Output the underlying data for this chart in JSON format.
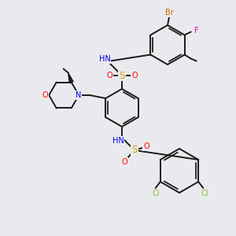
{
  "background_color": "#eaeaee",
  "bond_color": "#1a1a1a",
  "atom_colors": {
    "Br": "#cc6600",
    "F": "#cc00cc",
    "Cl": "#7bc42a",
    "N": "#0000ee",
    "O": "#ff0000",
    "S": "#ccaa00",
    "C": "#1a1a1a",
    "H": "#4a9090"
  },
  "figsize": [
    3.0,
    3.0
  ],
  "dpi": 100
}
